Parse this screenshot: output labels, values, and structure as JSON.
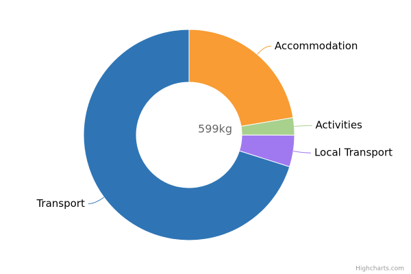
{
  "chart_data": {
    "type": "pie",
    "center_label": "599kg",
    "categories": [
      "Accommodation",
      "Activities",
      "Local Transport",
      "Transport"
    ],
    "values": [
      134,
      16,
      29,
      420
    ],
    "colors": [
      "#f89c33",
      "#a9d18e",
      "#a079f0",
      "#2f75b5"
    ],
    "credit": "Highcharts.com"
  }
}
